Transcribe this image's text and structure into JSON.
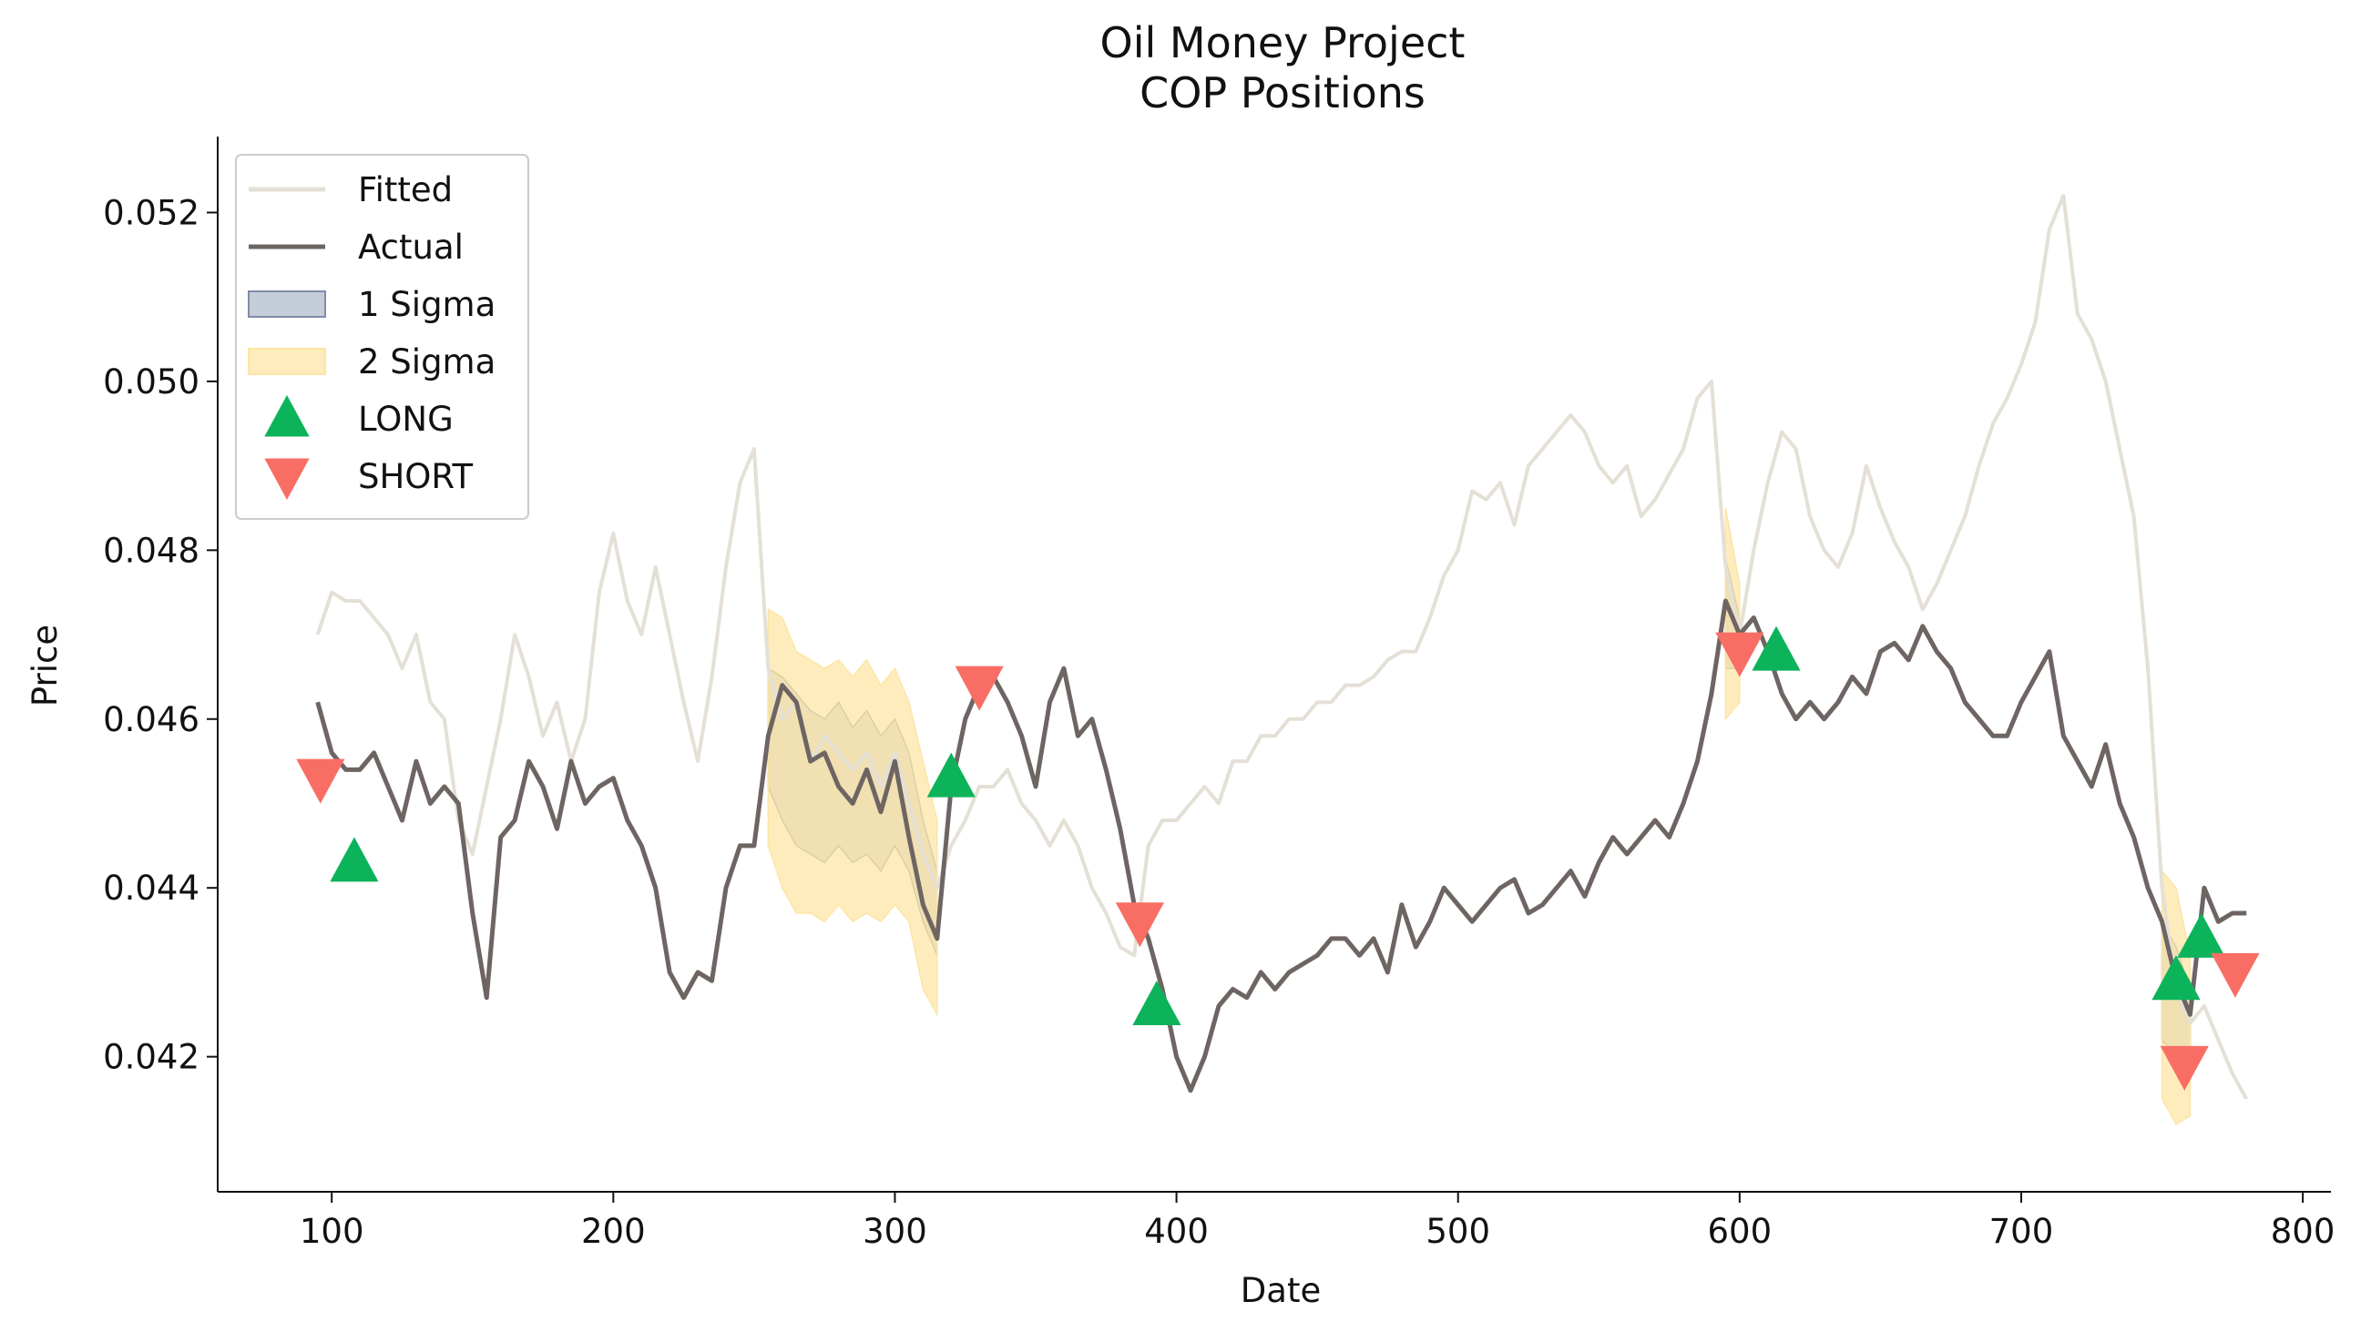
{
  "chart_data": {
    "type": "line",
    "title": "Oil Money Project\nCOP Positions",
    "x_label": "Date",
    "y_label": "Price",
    "xlim": [
      59.5,
      810
    ],
    "ylim": [
      0.0404,
      0.0529
    ],
    "xticks": [
      100,
      200,
      300,
      400,
      500,
      600,
      700,
      800
    ],
    "yticks": [
      0.042,
      0.044,
      0.046,
      0.048,
      {
        "value": 0.05,
        "label": "0.050"
      },
      0.052
    ],
    "grid": false,
    "legend": "upper left",
    "x": [
      95,
      100,
      105,
      110,
      115,
      120,
      125,
      130,
      135,
      140,
      145,
      150,
      155,
      160,
      165,
      170,
      175,
      180,
      185,
      190,
      195,
      200,
      205,
      210,
      215,
      220,
      225,
      230,
      235,
      240,
      245,
      250,
      255,
      260,
      265,
      270,
      275,
      280,
      285,
      290,
      295,
      300,
      305,
      310,
      315,
      320,
      325,
      330,
      335,
      340,
      345,
      350,
      355,
      360,
      365,
      370,
      375,
      380,
      385,
      390,
      395,
      400,
      405,
      410,
      415,
      420,
      425,
      430,
      435,
      440,
      445,
      450,
      455,
      460,
      465,
      470,
      475,
      480,
      485,
      490,
      495,
      500,
      505,
      510,
      515,
      520,
      525,
      530,
      535,
      540,
      545,
      550,
      555,
      560,
      565,
      570,
      575,
      580,
      585,
      590,
      595,
      600,
      605,
      610,
      615,
      620,
      625,
      630,
      635,
      640,
      645,
      650,
      655,
      660,
      665,
      670,
      675,
      680,
      685,
      690,
      695,
      700,
      705,
      710,
      715,
      720,
      725,
      730,
      735,
      740,
      745,
      750,
      755,
      760,
      765,
      770,
      775,
      780
    ],
    "series": [
      {
        "name": "Fitted",
        "kind": "line",
        "color": "#e5e0d6",
        "values": [
          0.047,
          0.0475,
          0.0474,
          0.0474,
          0.0472,
          0.047,
          0.0466,
          0.047,
          0.0462,
          0.046,
          0.0448,
          0.0444,
          0.0452,
          0.046,
          0.047,
          0.0465,
          0.0458,
          0.0462,
          0.0455,
          0.046,
          0.0475,
          0.0482,
          0.0474,
          0.047,
          0.0478,
          0.047,
          0.0462,
          0.0455,
          0.0465,
          0.0478,
          0.0488,
          0.0492,
          0.0466,
          0.046,
          0.0462,
          0.0455,
          0.0458,
          0.0456,
          0.0454,
          0.0456,
          0.0452,
          0.0456,
          0.045,
          0.0444,
          0.044,
          0.0445,
          0.0448,
          0.0452,
          0.0452,
          0.0454,
          0.045,
          0.0448,
          0.0445,
          0.0448,
          0.0445,
          0.044,
          0.0437,
          0.0433,
          0.0432,
          0.0445,
          0.0448,
          0.0448,
          0.045,
          0.0452,
          0.045,
          0.0455,
          0.0455,
          0.0458,
          0.0458,
          0.046,
          0.046,
          0.0462,
          0.0462,
          0.0464,
          0.0464,
          0.0465,
          0.0467,
          0.0468,
          0.0468,
          0.0472,
          0.0477,
          0.048,
          0.0487,
          0.0486,
          0.0488,
          0.0483,
          0.049,
          0.0492,
          0.0494,
          0.0496,
          0.0494,
          0.049,
          0.0488,
          0.049,
          0.0484,
          0.0486,
          0.0489,
          0.0492,
          0.0498,
          0.05,
          0.0478,
          0.047,
          0.048,
          0.0488,
          0.0494,
          0.0492,
          0.0484,
          0.048,
          0.0478,
          0.0482,
          0.049,
          0.0485,
          0.0481,
          0.0478,
          0.0473,
          0.0476,
          0.048,
          0.0484,
          0.049,
          0.0495,
          0.0498,
          0.0502,
          0.0507,
          0.0518,
          0.0522,
          0.0508,
          0.0505,
          0.05,
          0.0492,
          0.0484,
          0.0466,
          0.044,
          0.0428,
          0.0424,
          0.0426,
          0.0422,
          0.0418,
          0.0415
        ]
      },
      {
        "name": "Actual",
        "kind": "line",
        "color": "#6e6563",
        "values": [
          0.0462,
          0.0456,
          0.0454,
          0.0454,
          0.0456,
          0.0452,
          0.0448,
          0.0455,
          0.045,
          0.0452,
          0.045,
          0.0437,
          0.0427,
          0.0446,
          0.0448,
          0.0455,
          0.0452,
          0.0447,
          0.0455,
          0.045,
          0.0452,
          0.0453,
          0.0448,
          0.0445,
          0.044,
          0.043,
          0.0427,
          0.043,
          0.0429,
          0.044,
          0.0445,
          0.0445,
          0.0458,
          0.0464,
          0.0462,
          0.0455,
          0.0456,
          0.0452,
          0.045,
          0.0454,
          0.0449,
          0.0455,
          0.0446,
          0.0438,
          0.0434,
          0.0452,
          0.046,
          0.0464,
          0.0465,
          0.0462,
          0.0458,
          0.0452,
          0.0462,
          0.0466,
          0.0458,
          0.046,
          0.0454,
          0.0447,
          0.0438,
          0.0434,
          0.0428,
          0.042,
          0.0416,
          0.042,
          0.0426,
          0.0428,
          0.0427,
          0.043,
          0.0428,
          0.043,
          0.0431,
          0.0432,
          0.0434,
          0.0434,
          0.0432,
          0.0434,
          0.043,
          0.0438,
          0.0433,
          0.0436,
          0.044,
          0.0438,
          0.0436,
          0.0438,
          0.044,
          0.0441,
          0.0437,
          0.0438,
          0.044,
          0.0442,
          0.0439,
          0.0443,
          0.0446,
          0.0444,
          0.0446,
          0.0448,
          0.0446,
          0.045,
          0.0455,
          0.0463,
          0.0474,
          0.047,
          0.0472,
          0.0468,
          0.0463,
          0.046,
          0.0462,
          0.046,
          0.0462,
          0.0465,
          0.0463,
          0.0468,
          0.0469,
          0.0467,
          0.0471,
          0.0468,
          0.0466,
          0.0462,
          0.046,
          0.0458,
          0.0458,
          0.0462,
          0.0465,
          0.0468,
          0.0458,
          0.0455,
          0.0452,
          0.0457,
          0.045,
          0.0446,
          0.044,
          0.0436,
          0.0429,
          0.0425,
          0.044,
          0.0436,
          0.0437,
          0.0437
        ]
      },
      {
        "name": "1 Sigma",
        "kind": "band",
        "color": "#b2bccb",
        "edge": "#7e8ca6",
        "x": [
          255,
          260,
          265,
          270,
          275,
          280,
          285,
          290,
          295,
          300,
          305,
          310,
          315,
          null,
          595,
          600,
          null,
          750,
          755,
          760
        ],
        "upper": [
          0.0466,
          0.0465,
          0.0463,
          0.0461,
          0.046,
          0.0462,
          0.0459,
          0.0461,
          0.0458,
          0.046,
          0.0456,
          0.0448,
          0.0442,
          null,
          0.0479,
          0.0472,
          null,
          0.0436,
          0.0433,
          0.0428
        ],
        "lower": [
          0.0452,
          0.0448,
          0.0445,
          0.0444,
          0.0443,
          0.0445,
          0.0443,
          0.0444,
          0.0442,
          0.0445,
          0.0442,
          0.0436,
          0.0432,
          null,
          0.0466,
          0.0466,
          null,
          0.0422,
          0.042,
          0.0418
        ]
      },
      {
        "name": "2 Sigma",
        "kind": "band",
        "color": "#fde5a6",
        "edge": "#fde5a6",
        "x": [
          255,
          260,
          265,
          270,
          275,
          280,
          285,
          290,
          295,
          300,
          305,
          310,
          315,
          null,
          595,
          600,
          null,
          750,
          755,
          760
        ],
        "upper": [
          0.0473,
          0.0472,
          0.0468,
          0.0467,
          0.0466,
          0.0467,
          0.0465,
          0.0467,
          0.0464,
          0.0466,
          0.0462,
          0.0455,
          0.0448,
          null,
          0.0485,
          0.0476,
          null,
          0.0442,
          0.044,
          0.0432
        ],
        "lower": [
          0.0445,
          0.044,
          0.0437,
          0.0437,
          0.0436,
          0.0438,
          0.0436,
          0.0437,
          0.0436,
          0.0438,
          0.0436,
          0.0428,
          0.0425,
          null,
          0.046,
          0.0462,
          null,
          0.0415,
          0.0412,
          0.0413
        ]
      },
      {
        "name": "LONG",
        "kind": "marker",
        "marker": "up",
        "color": "#0cb35a",
        "x": [
          108,
          320,
          393,
          613,
          755,
          764
        ],
        "values": [
          0.0443,
          0.0453,
          0.0426,
          0.0468,
          0.0429,
          0.0434
        ]
      },
      {
        "name": "SHORT",
        "kind": "marker",
        "marker": "down",
        "color": "#f96e64",
        "x": [
          96,
          330,
          387,
          600,
          758,
          776
        ],
        "values": [
          0.0453,
          0.0464,
          0.0436,
          0.0468,
          0.0419,
          0.043
        ]
      }
    ]
  }
}
